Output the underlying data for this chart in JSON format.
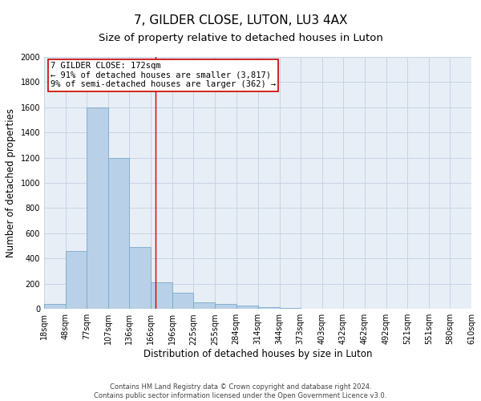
{
  "title": "7, GILDER CLOSE, LUTON, LU3 4AX",
  "subtitle": "Size of property relative to detached houses in Luton",
  "xlabel": "Distribution of detached houses by size in Luton",
  "ylabel": "Number of detached properties",
  "footer_line1": "Contains HM Land Registry data © Crown copyright and database right 2024.",
  "footer_line2": "Contains public sector information licensed under the Open Government Licence v3.0.",
  "bin_labels": [
    "18sqm",
    "48sqm",
    "77sqm",
    "107sqm",
    "136sqm",
    "166sqm",
    "196sqm",
    "225sqm",
    "255sqm",
    "284sqm",
    "314sqm",
    "344sqm",
    "373sqm",
    "403sqm",
    "432sqm",
    "462sqm",
    "492sqm",
    "521sqm",
    "551sqm",
    "580sqm",
    "610sqm"
  ],
  "bin_edges": [
    18,
    48,
    77,
    107,
    136,
    166,
    196,
    225,
    255,
    284,
    314,
    344,
    373,
    403,
    432,
    462,
    492,
    521,
    551,
    580,
    610
  ],
  "bar_values": [
    40,
    460,
    1600,
    1200,
    490,
    210,
    130,
    50,
    40,
    25,
    15,
    5,
    2,
    1,
    0,
    0,
    0,
    0,
    0,
    0
  ],
  "bar_color": "#b8d0e8",
  "bar_edge_color": "#7aaac8",
  "property_size": 172,
  "vline_color": "#cc0000",
  "annotation_line1": "7 GILDER CLOSE: 172sqm",
  "annotation_line2": "← 91% of detached houses are smaller (3,817)",
  "annotation_line3": "9% of semi-detached houses are larger (362) →",
  "annotation_box_color": "#cc0000",
  "ylim": [
    0,
    2000
  ],
  "yticks": [
    0,
    200,
    400,
    600,
    800,
    1000,
    1200,
    1400,
    1600,
    1800,
    2000
  ],
  "grid_color": "#c8d4e4",
  "bg_color": "#e8eef6",
  "title_fontsize": 11,
  "subtitle_fontsize": 9.5,
  "ylabel_fontsize": 8.5,
  "xlabel_fontsize": 8.5,
  "tick_fontsize": 7,
  "annotation_fontsize": 7.5,
  "footer_fontsize": 6
}
